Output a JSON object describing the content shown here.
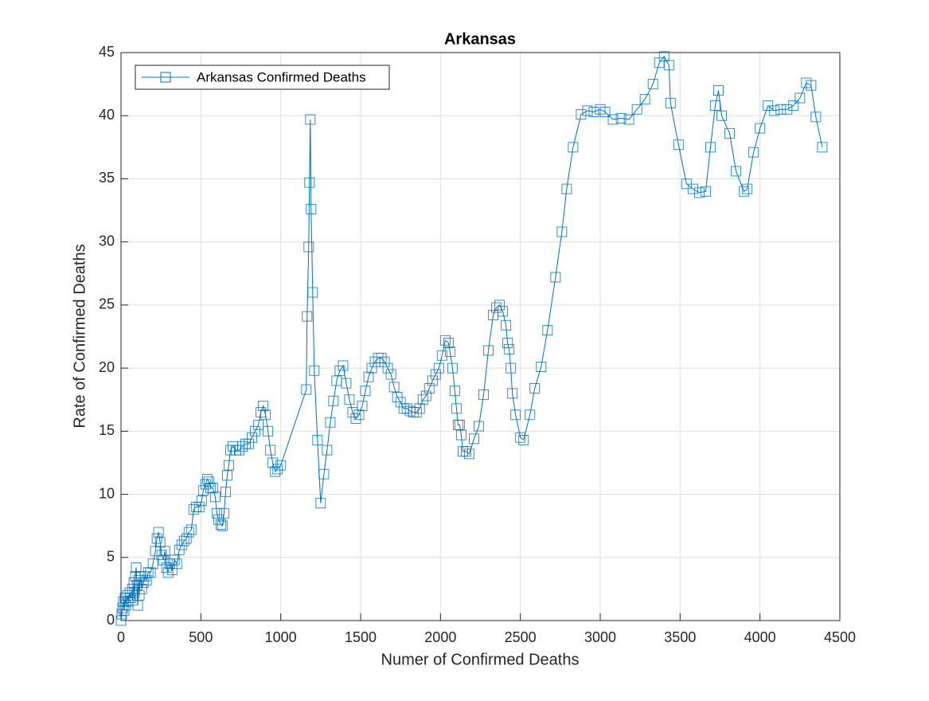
{
  "chart_data": {
    "type": "line",
    "title": "Arkansas",
    "x_label": "Numer of Confirmed Deaths",
    "y_label": "Rate of Confirmed Deaths",
    "x": [
      0,
      5,
      10,
      15,
      20,
      25,
      30,
      40,
      45,
      55,
      60,
      70,
      75,
      80,
      85,
      90,
      95,
      100,
      105,
      110,
      115,
      120,
      130,
      140,
      150,
      160,
      170,
      185,
      200,
      215,
      225,
      235,
      245,
      255,
      265,
      275,
      285,
      295,
      305,
      320,
      335,
      350,
      365,
      380,
      395,
      410,
      425,
      440,
      455,
      470,
      490,
      505,
      515,
      530,
      540,
      550,
      560,
      575,
      590,
      600,
      610,
      625,
      635,
      645,
      655,
      665,
      675,
      685,
      700,
      720,
      740,
      760,
      780,
      800,
      820,
      840,
      860,
      875,
      890,
      905,
      920,
      935,
      950,
      965,
      980,
      1000,
      1160,
      1165,
      1175,
      1180,
      1185,
      1190,
      1200,
      1210,
      1230,
      1250,
      1270,
      1290,
      1310,
      1330,
      1350,
      1370,
      1390,
      1410,
      1430,
      1450,
      1470,
      1490,
      1510,
      1530,
      1550,
      1570,
      1590,
      1610,
      1630,
      1650,
      1670,
      1690,
      1710,
      1730,
      1750,
      1770,
      1790,
      1810,
      1830,
      1850,
      1870,
      1890,
      1910,
      1930,
      1950,
      1970,
      1990,
      2010,
      2030,
      2050,
      2060,
      2075,
      2090,
      2100,
      2110,
      2120,
      2130,
      2140,
      2160,
      2180,
      2210,
      2240,
      2270,
      2300,
      2330,
      2350,
      2370,
      2390,
      2410,
      2420,
      2430,
      2440,
      2450,
      2470,
      2500,
      2520,
      2560,
      2590,
      2630,
      2670,
      2720,
      2760,
      2790,
      2830,
      2880,
      2920,
      2960,
      3000,
      3030,
      3080,
      3130,
      3180,
      3230,
      3280,
      3330,
      3370,
      3400,
      3430,
      3440,
      3490,
      3540,
      3580,
      3620,
      3660,
      3690,
      3720,
      3740,
      3760,
      3810,
      3850,
      3900,
      3920,
      3960,
      4000,
      4050,
      4090,
      4130,
      4170,
      4210,
      4250,
      4290,
      4320,
      4350,
      4390
    ],
    "series": [
      {
        "name": "Arkansas Confirmed Deaths",
        "color": "#0072bd",
        "marker": "square",
        "values": [
          0,
          0.5,
          1,
          1.5,
          0.8,
          1.8,
          1.2,
          2,
          1.5,
          2.2,
          1.8,
          2.5,
          1.6,
          3,
          2.2,
          3.5,
          4.2,
          2.8,
          1.2,
          3.2,
          2,
          3.5,
          2.5,
          3,
          3.5,
          3.2,
          3.8,
          3.8,
          4.5,
          5.5,
          6.5,
          7,
          6.2,
          5.2,
          4.8,
          5.5,
          4.2,
          3.8,
          4.5,
          4,
          4.8,
          4.5,
          5.6,
          6,
          6.3,
          6.5,
          7,
          7.2,
          8.8,
          9,
          9,
          9.5,
          10.3,
          10.8,
          11.2,
          11,
          10.5,
          10.5,
          9.8,
          8.5,
          8,
          7.6,
          7.5,
          8.5,
          10.2,
          11.5,
          12.3,
          13.5,
          13.8,
          13.5,
          13.5,
          13.8,
          14,
          14,
          14.5,
          15,
          15.5,
          16.5,
          17,
          16.3,
          15,
          13.5,
          12.5,
          11.8,
          12,
          12.3,
          18.3,
          24.1,
          29.6,
          34.7,
          39.7,
          32.6,
          26,
          19.8,
          14.3,
          9.3,
          11.6,
          13.5,
          15.7,
          17.4,
          19,
          19.8,
          20.2,
          18.8,
          17.5,
          16.5,
          16,
          16.3,
          17,
          18.2,
          19.3,
          20,
          20.5,
          20.8,
          20.8,
          20.5,
          20,
          19.5,
          18.5,
          17.7,
          17.3,
          16.8,
          16.8,
          16.6,
          16.5,
          16.5,
          16.8,
          17.5,
          17.8,
          18.4,
          19,
          19.5,
          20,
          21,
          22.2,
          22,
          21.3,
          20,
          18.2,
          16.8,
          15.5,
          15.5,
          14.7,
          13.4,
          13.4,
          13.2,
          14.4,
          15.4,
          17.9,
          21.4,
          24.2,
          24.8,
          25,
          24.5,
          23.4,
          22,
          21.5,
          20,
          18,
          16.3,
          14.5,
          14.3,
          16.3,
          18.4,
          20.1,
          23,
          27.2,
          30.8,
          34.2,
          37.5,
          40.1,
          40.4,
          40.3,
          40.5,
          40.3,
          39.7,
          39.8,
          39.7,
          40.5,
          41.3,
          42.5,
          44.2,
          44.7,
          44,
          41,
          37.7,
          34.6,
          34.2,
          33.9,
          34,
          37.5,
          40.8,
          42,
          40,
          38.6,
          35.6,
          34,
          34.2,
          37.1,
          39,
          40.8,
          40.4,
          40.5,
          40.5,
          40.8,
          41.4,
          42.6,
          42.4,
          39.9,
          37.5
        ]
      }
    ],
    "xlim": [
      0,
      4500
    ],
    "xticks": [
      0,
      500,
      1000,
      1500,
      2000,
      2500,
      3000,
      3500,
      4000,
      4500
    ],
    "ylim": [
      0,
      45
    ],
    "yticks": [
      0,
      5,
      10,
      15,
      20,
      25,
      30,
      35,
      40,
      45
    ],
    "grid": true,
    "legend": "upper-left"
  }
}
